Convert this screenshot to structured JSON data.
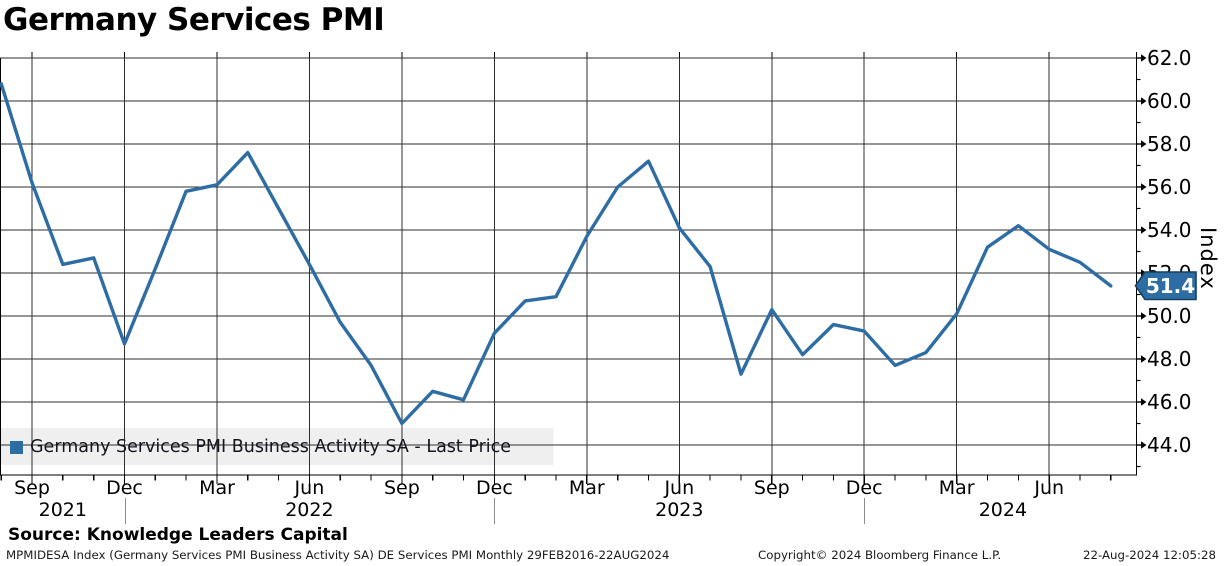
{
  "title": "Germany Services PMI",
  "legend": {
    "label": "Germany Services PMI Business Activity SA - Last Price",
    "marker_color": "#2e6da4"
  },
  "y_axis": {
    "label": "Index"
  },
  "last_price_badge": {
    "value": "51.4",
    "bg": "#2e6da4",
    "border": "#17405f",
    "text_color": "#ffffff"
  },
  "source_line": "Source: Knowledge Leaders Capital",
  "footer": {
    "left": "MPMIDESA Index (Germany Services PMI Business Activity SA) DE Services PMI  Monthly 29FEB2016-22AUG2024",
    "center": "Copyright© 2024 Bloomberg Finance L.P.",
    "right": "22-Aug-2024 12:05:28"
  },
  "chart_data": {
    "type": "line",
    "title": "Germany Services PMI",
    "ylabel": "Index",
    "ylim": [
      42.6,
      62.2
    ],
    "yticks_major": [
      62.0,
      60.0,
      58.0,
      56.0,
      54.0,
      52.0,
      50.0,
      48.0,
      46.0,
      44.0
    ],
    "yticks_minor": [
      61.0,
      59.0,
      57.0,
      55.0,
      53.0,
      51.0,
      49.0,
      47.0,
      45.0,
      43.0
    ],
    "grid": true,
    "legend_position": "bottom-left",
    "line_color": "#2e6da4",
    "months": [
      "Aug 2021",
      "Sep 2021",
      "Oct 2021",
      "Nov 2021",
      "Dec 2021",
      "Jan 2022",
      "Feb 2022",
      "Mar 2022",
      "Apr 2022",
      "May 2022",
      "Jun 2022",
      "Jul 2022",
      "Aug 2022",
      "Sep 2022",
      "Oct 2022",
      "Nov 2022",
      "Dec 2022",
      "Jan 2023",
      "Feb 2023",
      "Mar 2023",
      "Apr 2023",
      "May 2023",
      "Jun 2023",
      "Jul 2023",
      "Aug 2023",
      "Sep 2023",
      "Oct 2023",
      "Nov 2023",
      "Dec 2023",
      "Jan 2024",
      "Feb 2024",
      "Mar 2024",
      "Apr 2024",
      "May 2024",
      "Jun 2024",
      "Jul 2024",
      "Aug 2024"
    ],
    "series": [
      {
        "name": "Germany Services PMI Business Activity SA - Last Price",
        "color": "#2e6da4",
        "values": [
          60.8,
          56.2,
          52.4,
          52.7,
          48.7,
          52.2,
          55.8,
          56.1,
          57.6,
          55.0,
          52.4,
          49.7,
          47.7,
          45.0,
          46.5,
          46.1,
          49.2,
          50.7,
          50.9,
          53.7,
          56.0,
          57.2,
          54.1,
          52.3,
          47.3,
          50.3,
          48.2,
          49.6,
          49.3,
          47.7,
          48.3,
          50.1,
          53.2,
          54.2,
          53.1,
          52.5,
          51.4
        ]
      }
    ],
    "last_value": 51.4,
    "x_tick_labels": [
      {
        "label": "Sep",
        "i": 1
      },
      {
        "label": "Dec",
        "i": 4
      },
      {
        "label": "Mar",
        "i": 7
      },
      {
        "label": "Jun",
        "i": 10
      },
      {
        "label": "Sep",
        "i": 13
      },
      {
        "label": "Dec",
        "i": 16
      },
      {
        "label": "Mar",
        "i": 19
      },
      {
        "label": "Jun",
        "i": 22
      },
      {
        "label": "Sep",
        "i": 25
      },
      {
        "label": "Dec",
        "i": 28
      },
      {
        "label": "Mar",
        "i": 31
      },
      {
        "label": "Jun",
        "i": 34
      }
    ],
    "year_labels": [
      {
        "label": "2021",
        "i": 2.0
      },
      {
        "label": "2022",
        "i": 10.0
      },
      {
        "label": "2023",
        "i": 22.0
      },
      {
        "label": "2024",
        "i": 32.5
      }
    ],
    "year_separators_i": [
      4,
      16,
      28
    ]
  }
}
